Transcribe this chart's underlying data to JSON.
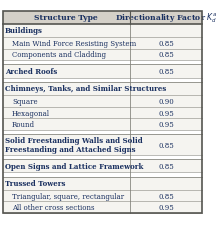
{
  "title_col1": "Structure Type",
  "title_col2": "Directionality Factor $K_d^a$",
  "groups": [
    {
      "header": "Buildings",
      "sub": [
        {
          "text": "Main Wind Force Resisting System",
          "value": "0.85"
        },
        {
          "text": "Components and Cladding",
          "value": "0.85"
        }
      ]
    },
    {
      "header": "Arched Roofs",
      "sub": [],
      "header_value": "0.85"
    },
    {
      "header": "Chimneys, Tanks, and Similar Structures",
      "sub": [
        {
          "text": "Square",
          "value": "0.90"
        },
        {
          "text": "Hexagonal",
          "value": "0.95"
        },
        {
          "text": "Round",
          "value": "0.95"
        }
      ]
    },
    {
      "header": "Solid Freestanding Walls and Solid\nFreestanding and Attached Signs",
      "sub": [],
      "header_value": "0.85"
    },
    {
      "header": "Open Signs and Lattice Framework",
      "sub": [],
      "header_value": "0.85"
    },
    {
      "header": "Trussed Towers",
      "sub": [
        {
          "text": "Triangular, square, rectangular",
          "value": "0.85"
        },
        {
          "text": "All other cross sections",
          "value": "0.95"
        }
      ]
    }
  ],
  "header_bg": "#d4d0c8",
  "body_bg": "#f5f4f0",
  "border_color": "#888880",
  "thick_border": "#555550",
  "text_color": "#1a3060",
  "header_text_color": "#1a3060",
  "col_split": 0.635,
  "font_size": 5.0,
  "header_font_size": 5.5
}
